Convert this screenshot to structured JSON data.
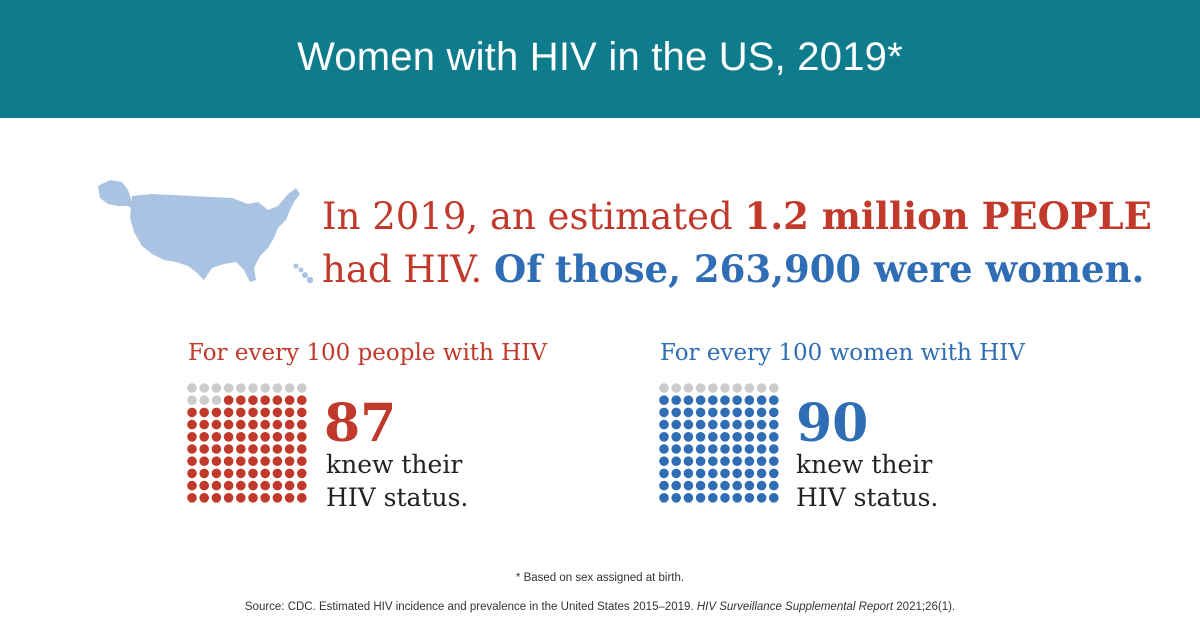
{
  "header": {
    "title": "Women with HIV in the US, 2019*"
  },
  "colors": {
    "header_bg": "#0e7c8c",
    "red": "#c0392b",
    "blue": "#2f6db5",
    "gray_dot": "#cccccc",
    "map": "#aac3e2"
  },
  "headline": {
    "part1": "In 2019, an estimated ",
    "highlight1": "1.2 million PEOPLE",
    "part2": "had HIV. ",
    "highlight2": "Of those, 263,900 were women."
  },
  "map_icon": "us-map-icon",
  "panels": [
    {
      "heading": "For every 100 people with HIV",
      "knew": 87,
      "number": "87",
      "caption_line1": "knew their",
      "caption_line2": "HIV status.",
      "color": "#c0392b"
    },
    {
      "heading": "For every 100 women with HIV",
      "knew": 90,
      "number": "90",
      "caption_line1": "knew their",
      "caption_line2": "HIV status.",
      "color": "#2f6db5"
    }
  ],
  "footnote": "* Based on sex assigned at birth.",
  "source": {
    "text": "Source: CDC. Estimated HIV incidence and prevalence in the United States 2015–2019. ",
    "italic": "HIV Surveillance Supplemental Report",
    "tail": " 2021;26(1)."
  }
}
